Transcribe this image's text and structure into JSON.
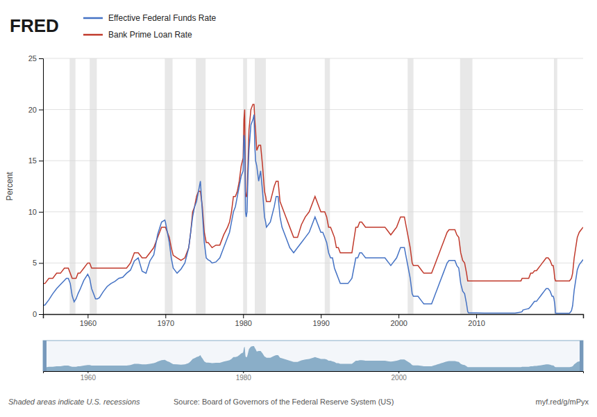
{
  "chart_data": [
    {
      "type": "line",
      "title": "FRED",
      "ylabel": "Percent",
      "legend": "top-left",
      "grid": true,
      "xlim": [
        1954.25,
        2023.75
      ],
      "ylim": [
        0,
        25
      ],
      "xticks": [
        1960,
        1970,
        1980,
        1990,
        2000,
        2010
      ],
      "yticks": [
        0,
        5,
        10,
        15,
        20,
        25
      ],
      "x": [
        1954.25,
        1954.5,
        1955.0,
        1955.5,
        1956.0,
        1956.5,
        1957.0,
        1957.25,
        1957.5,
        1957.75,
        1958.0,
        1958.25,
        1958.5,
        1958.75,
        1959.0,
        1959.5,
        1960.0,
        1960.25,
        1960.5,
        1960.75,
        1961.0,
        1961.25,
        1961.5,
        1962.0,
        1962.5,
        1963.0,
        1963.5,
        1964.0,
        1964.5,
        1965.0,
        1965.5,
        1966.0,
        1966.5,
        1967.0,
        1967.5,
        1968.0,
        1968.5,
        1969.0,
        1969.5,
        1969.92,
        1970.0,
        1970.25,
        1970.5,
        1970.75,
        1971.0,
        1971.5,
        1972.0,
        1972.5,
        1973.0,
        1973.25,
        1973.5,
        1973.75,
        1974.0,
        1974.25,
        1974.5,
        1974.75,
        1975.0,
        1975.25,
        1975.5,
        1975.75,
        1976.0,
        1976.5,
        1977.0,
        1977.5,
        1978.0,
        1978.25,
        1978.5,
        1978.75,
        1979.0,
        1979.25,
        1979.5,
        1979.75,
        1980.0,
        1980.1,
        1980.2,
        1980.3,
        1980.4,
        1980.5,
        1980.6,
        1980.75,
        1981.0,
        1981.25,
        1981.4,
        1981.5,
        1981.6,
        1981.75,
        1982.0,
        1982.25,
        1982.5,
        1982.75,
        1982.9,
        1983.0,
        1983.5,
        1984.0,
        1984.25,
        1984.5,
        1984.75,
        1985.0,
        1985.5,
        1986.0,
        1986.5,
        1987.0,
        1987.5,
        1988.0,
        1988.5,
        1989.0,
        1989.25,
        1989.5,
        1989.75,
        1990.0,
        1990.25,
        1990.5,
        1990.75,
        1991.0,
        1991.25,
        1991.5,
        1991.75,
        1992.0,
        1992.25,
        1992.5,
        1993.0,
        1993.5,
        1994.0,
        1994.25,
        1994.5,
        1994.75,
        1995.0,
        1995.25,
        1995.5,
        1995.75,
        1996.0,
        1996.5,
        1997.0,
        1997.5,
        1998.0,
        1998.25,
        1998.5,
        1998.75,
        1999.0,
        1999.25,
        1999.5,
        1999.75,
        2000.0,
        2000.25,
        2000.5,
        2000.75,
        2001.0,
        2001.25,
        2001.5,
        2001.75,
        2001.9,
        2002.0,
        2002.5,
        2003.0,
        2003.25,
        2003.5,
        2004.0,
        2004.25,
        2004.5,
        2004.75,
        2005.0,
        2005.25,
        2005.5,
        2005.75,
        2006.0,
        2006.25,
        2006.5,
        2006.75,
        2007.0,
        2007.25,
        2007.5,
        2007.75,
        2008.0,
        2008.25,
        2008.5,
        2008.75,
        2008.9,
        2009.0,
        2010.0,
        2011.0,
        2012.0,
        2013.0,
        2014.0,
        2015.0,
        2015.75,
        2015.9,
        2016.0,
        2016.5,
        2016.75,
        2017.0,
        2017.25,
        2017.5,
        2017.75,
        2018.0,
        2018.25,
        2018.5,
        2018.75,
        2019.0,
        2019.25,
        2019.5,
        2019.75,
        2019.9,
        2020.0,
        2020.1,
        2020.2,
        2021.0,
        2021.5,
        2022.0,
        2022.25,
        2022.4,
        2022.5,
        2022.6,
        2022.75,
        2022.9,
        2023.0,
        2023.25,
        2023.5,
        2023.75
      ],
      "series": [
        {
          "name": "Effective Federal Funds Rate",
          "color": "#4472c4",
          "values": [
            0.85,
            0.9,
            1.4,
            2.0,
            2.5,
            2.9,
            3.3,
            3.5,
            3.5,
            3.0,
            1.8,
            1.2,
            1.5,
            2.0,
            2.4,
            3.3,
            3.9,
            3.5,
            2.5,
            2.0,
            1.5,
            1.5,
            1.6,
            2.2,
            2.7,
            3.0,
            3.2,
            3.5,
            3.6,
            4.0,
            4.3,
            5.2,
            5.5,
            4.2,
            4.0,
            5.2,
            5.8,
            7.8,
            9.0,
            9.2,
            9.0,
            8.0,
            7.0,
            5.5,
            4.5,
            4.0,
            4.4,
            5.0,
            6.5,
            8.0,
            9.5,
            10.5,
            11.0,
            12.0,
            13.0,
            10.0,
            7.0,
            5.5,
            5.3,
            5.2,
            5.0,
            5.1,
            5.5,
            6.5,
            7.5,
            8.0,
            9.0,
            10.0,
            10.5,
            11.5,
            12.5,
            13.5,
            14.0,
            17.5,
            17.0,
            10.0,
            9.5,
            10.0,
            13.0,
            16.0,
            18.5,
            19.0,
            19.5,
            16.5,
            15.0,
            14.5,
            13.0,
            14.0,
            12.0,
            9.5,
            9.0,
            8.5,
            9.0,
            10.5,
            11.5,
            11.5,
            9.5,
            8.5,
            7.5,
            6.5,
            6.0,
            6.5,
            7.0,
            7.5,
            8.0,
            9.0,
            9.5,
            9.0,
            8.5,
            8.0,
            8.0,
            7.5,
            7.0,
            6.0,
            5.5,
            5.5,
            4.5,
            4.0,
            3.5,
            3.0,
            3.0,
            3.0,
            3.5,
            4.5,
            5.5,
            5.5,
            6.0,
            6.0,
            5.75,
            5.5,
            5.5,
            5.5,
            5.5,
            5.5,
            5.5,
            5.5,
            5.25,
            5.0,
            4.75,
            5.0,
            5.25,
            5.5,
            6.0,
            6.5,
            6.5,
            6.5,
            5.5,
            4.5,
            3.5,
            2.0,
            1.75,
            1.75,
            1.75,
            1.25,
            1.0,
            1.0,
            1.0,
            1.0,
            1.5,
            2.0,
            2.5,
            3.0,
            3.5,
            4.0,
            4.5,
            5.0,
            5.25,
            5.25,
            5.25,
            5.25,
            4.75,
            4.5,
            3.0,
            2.25,
            2.0,
            1.0,
            0.25,
            0.12,
            0.12,
            0.1,
            0.1,
            0.1,
            0.1,
            0.1,
            0.2,
            0.25,
            0.4,
            0.5,
            0.54,
            0.75,
            1.0,
            1.25,
            1.25,
            1.5,
            1.75,
            2.0,
            2.25,
            2.5,
            2.5,
            2.25,
            1.75,
            1.75,
            1.5,
            1.0,
            0.08,
            0.08,
            0.08,
            0.08,
            0.33,
            0.83,
            1.58,
            2.33,
            3.08,
            3.83,
            4.33,
            4.83,
            5.08,
            5.33
          ]
        },
        {
          "name": "Bank Prime Loan Rate",
          "color": "#c0392b",
          "values": [
            3.0,
            3.0,
            3.5,
            3.5,
            4.0,
            4.0,
            4.5,
            4.5,
            4.5,
            4.0,
            3.5,
            3.5,
            3.5,
            4.0,
            4.0,
            4.5,
            5.0,
            5.0,
            4.5,
            4.5,
            4.5,
            4.5,
            4.5,
            4.5,
            4.5,
            4.5,
            4.5,
            4.5,
            4.5,
            4.5,
            5.0,
            6.0,
            6.0,
            5.5,
            5.5,
            6.0,
            6.5,
            7.5,
            8.5,
            8.5,
            8.5,
            8.0,
            7.5,
            6.5,
            5.75,
            5.5,
            5.25,
            5.5,
            6.5,
            8.0,
            10.0,
            10.5,
            11.5,
            12.0,
            12.0,
            10.5,
            8.0,
            7.0,
            7.0,
            6.75,
            6.5,
            6.75,
            6.75,
            7.75,
            8.5,
            9.0,
            10.0,
            11.5,
            11.5,
            12.0,
            13.0,
            14.5,
            15.25,
            19.0,
            20.0,
            12.0,
            11.5,
            11.5,
            14.0,
            18.0,
            20.0,
            20.5,
            20.5,
            19.0,
            18.0,
            16.0,
            16.5,
            16.5,
            14.5,
            12.0,
            11.5,
            11.0,
            11.0,
            12.5,
            13.0,
            13.0,
            11.0,
            10.5,
            9.5,
            8.5,
            7.5,
            7.5,
            8.75,
            9.5,
            10.0,
            11.0,
            11.5,
            11.0,
            10.5,
            10.0,
            10.0,
            10.0,
            9.5,
            8.5,
            8.5,
            8.0,
            7.5,
            6.5,
            6.5,
            6.0,
            6.0,
            6.0,
            6.0,
            7.25,
            8.5,
            8.5,
            9.0,
            9.0,
            8.75,
            8.5,
            8.5,
            8.5,
            8.5,
            8.5,
            8.5,
            8.5,
            8.25,
            8.0,
            7.75,
            8.0,
            8.25,
            8.5,
            9.0,
            9.5,
            9.5,
            9.5,
            8.5,
            7.5,
            6.5,
            5.0,
            4.75,
            4.75,
            4.75,
            4.25,
            4.0,
            4.0,
            4.0,
            4.0,
            4.5,
            5.0,
            5.5,
            6.0,
            6.5,
            7.0,
            7.5,
            8.0,
            8.25,
            8.25,
            8.25,
            8.25,
            7.75,
            7.5,
            6.0,
            5.25,
            5.0,
            4.0,
            3.25,
            3.25,
            3.25,
            3.25,
            3.25,
            3.25,
            3.25,
            3.25,
            3.25,
            3.5,
            3.5,
            3.5,
            3.5,
            4.0,
            4.0,
            4.25,
            4.25,
            4.5,
            4.75,
            5.0,
            5.25,
            5.5,
            5.5,
            5.25,
            4.75,
            4.75,
            4.25,
            3.5,
            3.25,
            3.25,
            3.25,
            3.25,
            3.5,
            4.0,
            4.75,
            5.5,
            6.25,
            7.0,
            7.5,
            8.0,
            8.25,
            8.5
          ]
        }
      ],
      "recessions": [
        [
          1957.67,
          1958.42
        ],
        [
          1960.25,
          1961.17
        ],
        [
          1969.92,
          1970.92
        ],
        [
          1973.92,
          1975.17
        ],
        [
          1980.0,
          1980.5
        ],
        [
          1981.5,
          1982.92
        ],
        [
          1990.5,
          1991.17
        ],
        [
          2001.17,
          2001.92
        ],
        [
          2007.92,
          2009.5
        ],
        [
          2020.0,
          2020.42
        ]
      ],
      "annotations": [
        "Shaded areas indicate U.S. recessions",
        "Source: Board of Governors of the Federal Reserve System (US)",
        "myf.red/g/mPyx"
      ]
    },
    {
      "type": "area",
      "color": "#8aaec8",
      "tick_labels": "x",
      "xlim": [
        1954.25,
        2023.75
      ],
      "ylim": [
        0,
        25
      ],
      "xticks": [
        1960,
        1980,
        2000
      ]
    }
  ]
}
